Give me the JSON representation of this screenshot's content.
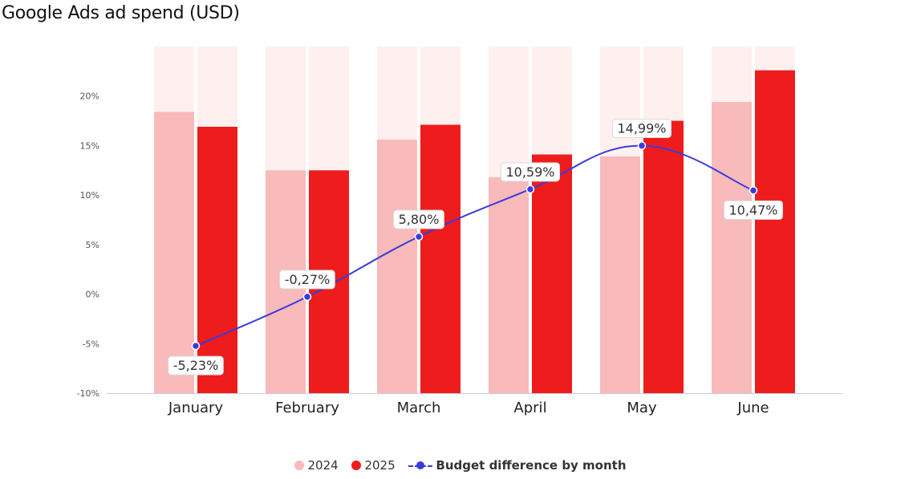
{
  "chart_data": {
    "type": "bar",
    "title": "Google Ads ad spend (USD)",
    "categories": [
      "January",
      "February",
      "March",
      "April",
      "May",
      "June"
    ],
    "ylim": [
      -10,
      25
    ],
    "yticks": [
      -10,
      -5,
      0,
      5,
      10,
      15,
      20
    ],
    "ytick_labels": [
      "-10%",
      "-5%",
      "0%",
      "5%",
      "10%",
      "15%",
      "20%"
    ],
    "series": [
      {
        "name": "2024",
        "type": "bar",
        "color": "#f8baba",
        "values": [
          18.4,
          12.5,
          15.6,
          11.8,
          13.9,
          19.4
        ]
      },
      {
        "name": "2025",
        "type": "bar",
        "color": "#ee1c1c",
        "values": [
          16.9,
          12.5,
          17.1,
          14.1,
          17.5,
          22.6
        ]
      },
      {
        "name": "Budget difference by month",
        "type": "line",
        "color": "#3b3bdb",
        "values": [
          -5.23,
          -0.27,
          5.8,
          10.59,
          14.99,
          10.47
        ],
        "labels": [
          "-5,23%",
          "-0,27%",
          "5,80%",
          "10,59%",
          "14,99%",
          "10,47%"
        ]
      }
    ],
    "background_band_color": "#fdf0ef",
    "grid": false,
    "legend_position": "bottom-center"
  }
}
